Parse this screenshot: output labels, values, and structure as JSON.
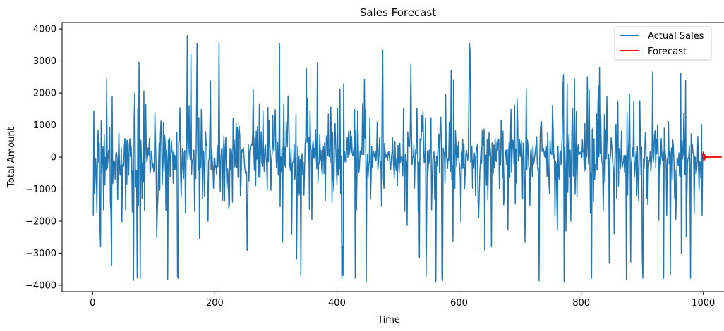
{
  "chart_data": {
    "type": "line",
    "title": "Sales Forecast",
    "xlabel": "Time",
    "ylabel": "Total Amount",
    "xlim": [
      -50,
      1050
    ],
    "ylim": [
      -4200,
      4200
    ],
    "xticks": [
      0,
      200,
      400,
      600,
      800,
      1000
    ],
    "xtick_labels": [
      "0",
      "200",
      "400",
      "600",
      "800",
      "1000"
    ],
    "yticks": [
      -4000,
      -3000,
      -2000,
      -1000,
      0,
      1000,
      2000,
      3000,
      4000
    ],
    "ytick_labels": [
      "−4000",
      "−3000",
      "−2000",
      "−1000",
      "0",
      "1000",
      "2000",
      "3000",
      "4000"
    ],
    "grid": false,
    "legend_position": "top-right",
    "series": [
      {
        "name": "Actual Sales",
        "color": "#1f77b4",
        "x_start": 1,
        "x_end": 1000,
        "y_range": [
          -3900,
          3820
        ],
        "notable_points": [
          {
            "x": 1,
            "y": -1820
          },
          {
            "x": 2,
            "y": 1440
          },
          {
            "x": 13,
            "y": 3260
          },
          {
            "x": 13,
            "y": -2800
          },
          {
            "x": 67,
            "y": 3150
          },
          {
            "x": 67,
            "y": -3850
          },
          {
            "x": 73,
            "y": 3800
          },
          {
            "x": 73,
            "y": -3780
          },
          {
            "x": 123,
            "y": -3820
          },
          {
            "x": 139,
            "y": -3750
          },
          {
            "x": 155,
            "y": 3790
          },
          {
            "x": 341,
            "y": 2800
          },
          {
            "x": 341,
            "y": -3720
          },
          {
            "x": 410,
            "y": -3700
          },
          {
            "x": 448,
            "y": -3880
          },
          {
            "x": 475,
            "y": 3340
          },
          {
            "x": 546,
            "y": -3720
          },
          {
            "x": 562,
            "y": -3880
          },
          {
            "x": 573,
            "y": -3860
          },
          {
            "x": 618,
            "y": 3300
          },
          {
            "x": 731,
            "y": -3860
          },
          {
            "x": 772,
            "y": -3900
          },
          {
            "x": 810,
            "y": 2500
          },
          {
            "x": 874,
            "y": -3820
          },
          {
            "x": 946,
            "y": -3660
          },
          {
            "x": 998,
            "y": -1820
          }
        ]
      },
      {
        "name": "Forecast",
        "color": "#ff0000",
        "x": [
          999,
          1000,
          1001,
          1002,
          1003,
          1004,
          1005,
          1006,
          1008,
          1010,
          1015,
          1020,
          1025,
          1030
        ],
        "y": [
          40,
          150,
          -120,
          90,
          -60,
          30,
          -20,
          10,
          -5,
          0,
          0,
          0,
          0,
          0
        ]
      }
    ]
  }
}
